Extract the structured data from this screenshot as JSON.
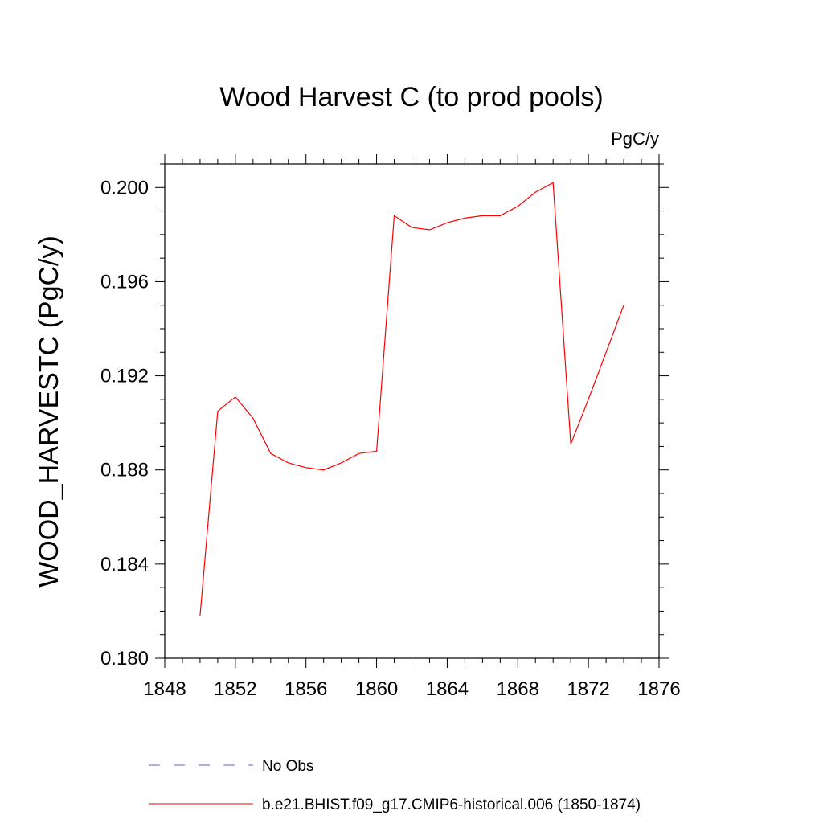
{
  "chart_data": {
    "type": "line",
    "title": "Wood Harvest C (to prod pools)",
    "units_label": "PgC/y",
    "ylabel": "WOOD_HARVESTC  (PgC/y)",
    "xlabel": "",
    "xlim": [
      1848,
      1876
    ],
    "ylim": [
      0.18,
      0.201
    ],
    "x_ticks": [
      1848,
      1852,
      1856,
      1860,
      1864,
      1868,
      1872,
      1876
    ],
    "x_tick_labels": [
      "1848",
      "1852",
      "1856",
      "1860",
      "1864",
      "1868",
      "1872",
      "1876"
    ],
    "y_ticks": [
      0.18,
      0.184,
      0.188,
      0.192,
      0.196,
      0.2
    ],
    "y_tick_labels": [
      "0.180",
      "0.184",
      "0.188",
      "0.192",
      "0.196",
      "0.200"
    ],
    "grid": false,
    "legend_position": "bottom",
    "series": [
      {
        "name": "b.e21.BHIST.f09_g17.CMIP6-historical.006 (1850-1874)",
        "color": "#ff0000",
        "style": "solid",
        "x": [
          1850,
          1851,
          1852,
          1853,
          1854,
          1855,
          1856,
          1857,
          1858,
          1859,
          1860,
          1861,
          1862,
          1863,
          1864,
          1865,
          1866,
          1867,
          1868,
          1869,
          1870,
          1871,
          1872,
          1873,
          1874
        ],
        "values": [
          0.1818,
          0.1905,
          0.1911,
          0.1902,
          0.1887,
          0.1883,
          0.1881,
          0.188,
          0.1883,
          0.1887,
          0.1888,
          0.1988,
          0.1983,
          0.1982,
          0.1985,
          0.1987,
          0.1988,
          0.1988,
          0.1992,
          0.1998,
          0.2002,
          0.1891,
          0.191,
          0.193,
          0.195
        ]
      }
    ],
    "legend": [
      {
        "label": "No Obs",
        "color": "#6a5acd",
        "style": "dashed"
      },
      {
        "label": "b.e21.BHIST.f09_g17.CMIP6-historical.006 (1850-1874)",
        "color": "#ff0000",
        "style": "solid"
      }
    ]
  }
}
